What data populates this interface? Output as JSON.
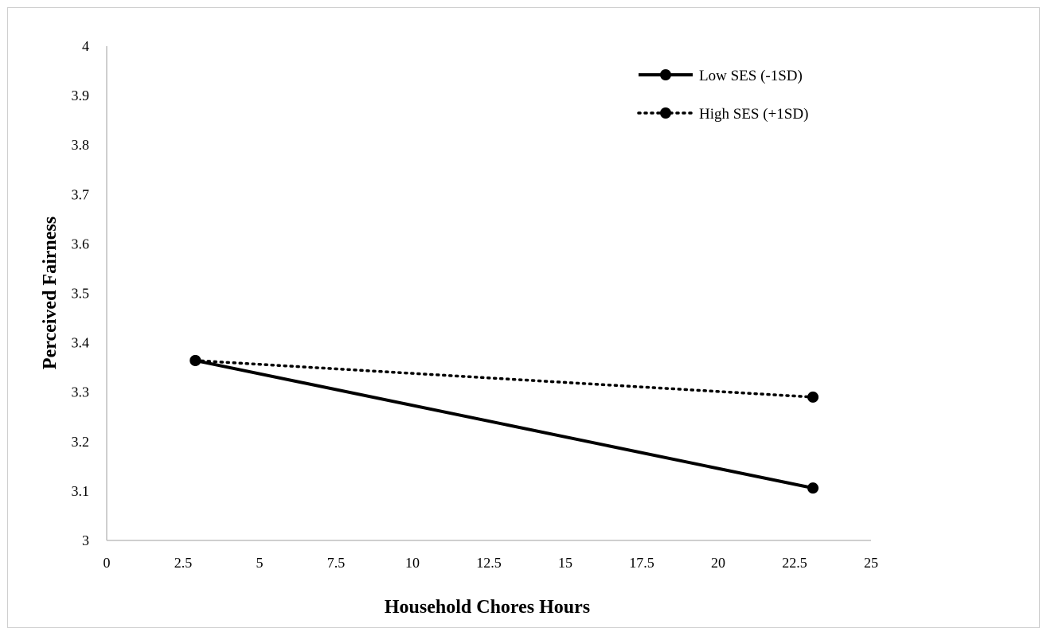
{
  "chart_data": {
    "type": "line",
    "xlabel": "Household Chores Hours",
    "ylabel": "Perceived Fairness",
    "xlim": [
      0,
      25
    ],
    "ylim": [
      3,
      4
    ],
    "xticks": [
      0,
      2.5,
      5,
      7.5,
      10,
      12.5,
      15,
      17.5,
      20,
      22.5,
      25
    ],
    "xtick_labels": [
      "0",
      "2.5",
      "5",
      "7.5",
      "10",
      "12.5",
      "15",
      "17.5",
      "20",
      "22.5",
      "25"
    ],
    "yticks": [
      3,
      3.1,
      3.2,
      3.3,
      3.4,
      3.5,
      3.6,
      3.7,
      3.8,
      3.9,
      4
    ],
    "ytick_labels": [
      "3",
      "3.1",
      "3.2",
      "3.3",
      "3.4",
      "3.5",
      "3.6",
      "3.7",
      "3.8",
      "3.9",
      "4"
    ],
    "grid": false,
    "legend_position": "top-right",
    "series": [
      {
        "name": "Low SES (-1SD)",
        "style": "solid",
        "color": "#000000",
        "x": [
          2.9,
          23.1
        ],
        "y": [
          3.364,
          3.106
        ]
      },
      {
        "name": "High SES (+1SD)",
        "style": "dotted",
        "color": "#000000",
        "x": [
          2.9,
          23.1
        ],
        "y": [
          3.364,
          3.29
        ]
      }
    ]
  }
}
